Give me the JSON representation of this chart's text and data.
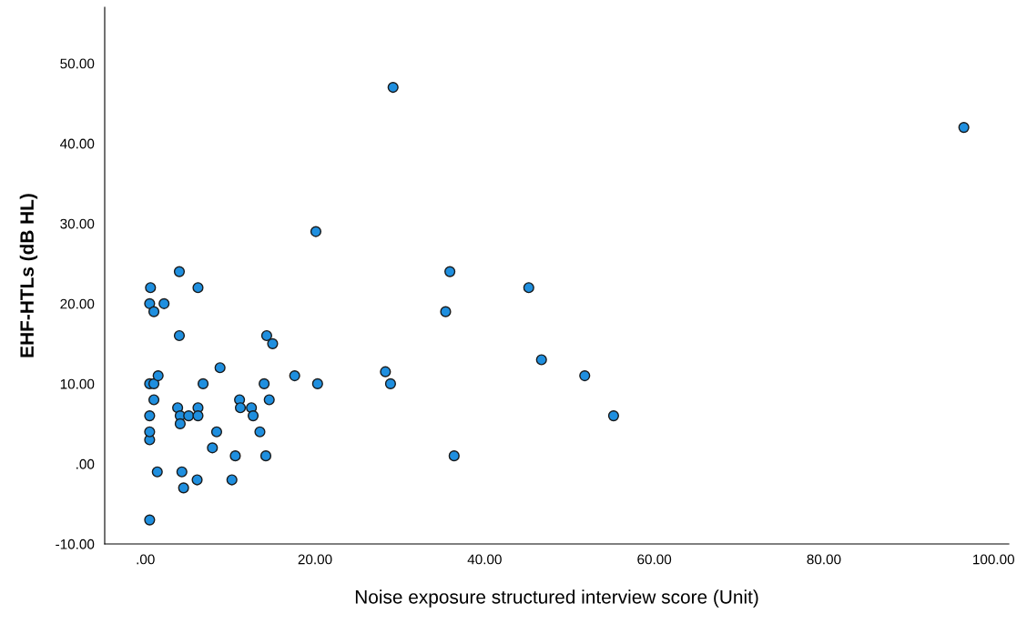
{
  "chart_data": {
    "type": "scatter",
    "xlabel": "Noise exposure structured interview score (Unit)",
    "ylabel": "EHF-HTLs (dB HL)",
    "x": [
      0.5,
      0.5,
      0.5,
      0.5,
      0.5,
      0.5,
      0.6,
      1.0,
      1.0,
      1.0,
      1.5,
      1.4,
      2.2,
      4.0,
      4.0,
      3.8,
      4.1,
      4.1,
      4.3,
      4.5,
      5.1,
      6.2,
      6.2,
      6.1,
      6.2,
      6.8,
      7.9,
      8.4,
      8.8,
      10.2,
      10.6,
      11.1,
      11.2,
      12.5,
      12.7,
      13.5,
      14.0,
      14.2,
      14.3,
      15.0,
      14.6,
      17.6,
      20.1,
      20.3,
      28.3,
      28.9,
      29.2,
      35.4,
      35.9,
      36.4,
      45.2,
      46.7,
      51.8,
      55.2,
      96.5
    ],
    "values": [
      -7,
      3,
      4,
      6,
      10,
      20,
      22,
      19,
      8,
      10,
      11,
      -1,
      20,
      24,
      16,
      7,
      6,
      5,
      -1,
      -3,
      6,
      7,
      6,
      -2,
      22,
      10,
      2,
      4,
      12,
      -2,
      1,
      8,
      7,
      7,
      6,
      4,
      10,
      1,
      16,
      15,
      8,
      11,
      29,
      10,
      11.5,
      10,
      47,
      19,
      24,
      1,
      22,
      13,
      11,
      6,
      42
    ],
    "color": "#1f8fdf",
    "marker": "circle",
    "grid": false,
    "legend": false,
    "xlim": [
      -4.8,
      101.8
    ],
    "ylim": [
      -10,
      57
    ],
    "xticks": [
      {
        "value": 0,
        "label": ".00"
      },
      {
        "value": 20,
        "label": "20.00"
      },
      {
        "value": 40,
        "label": "40.00"
      },
      {
        "value": 60,
        "label": "60.00"
      },
      {
        "value": 80,
        "label": "80.00"
      },
      {
        "value": 100,
        "label": "100.00"
      }
    ],
    "yticks": [
      {
        "value": -10,
        "label": "-10.00"
      },
      {
        "value": 0,
        "label": ".00"
      },
      {
        "value": 10,
        "label": "10.00"
      },
      {
        "value": 20,
        "label": "20.00"
      },
      {
        "value": 30,
        "label": "30.00"
      },
      {
        "value": 40,
        "label": "40.00"
      },
      {
        "value": 50,
        "label": "50.00"
      }
    ]
  }
}
